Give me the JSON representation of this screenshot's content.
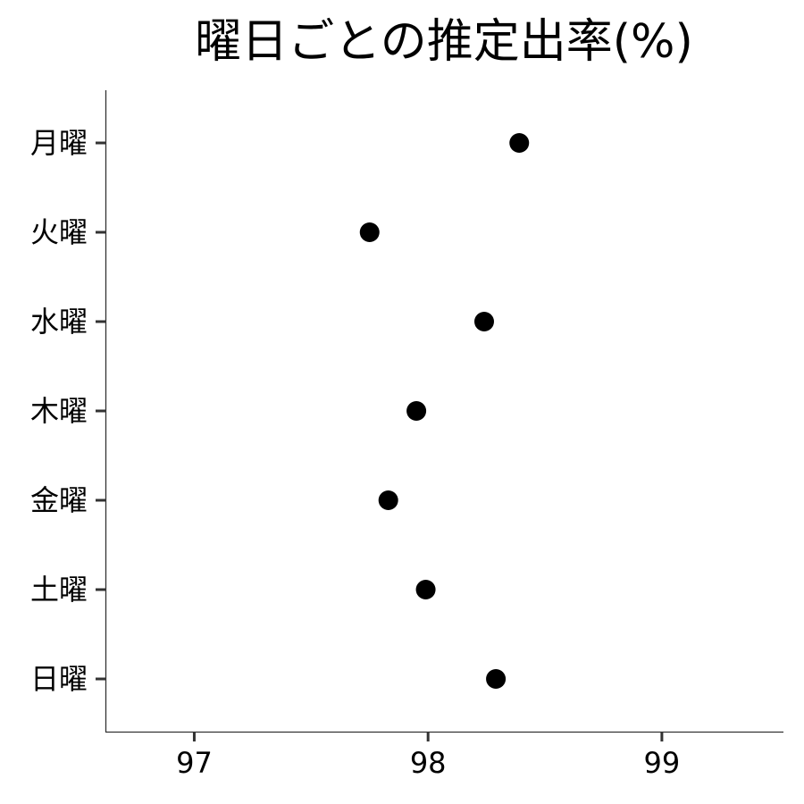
{
  "chart_data": {
    "type": "scatter",
    "title": "曜日ごとの推定出率(%)",
    "xlabel": "",
    "ylabel": "",
    "categories": [
      "月曜",
      "火曜",
      "水曜",
      "木曜",
      "金曜",
      "土曜",
      "日曜"
    ],
    "values": [
      98.39,
      97.75,
      98.24,
      97.95,
      97.83,
      97.99,
      98.29
    ],
    "xlim": [
      96.62,
      99.52
    ],
    "xticks": [
      "97",
      "98",
      "99"
    ],
    "grid": false,
    "point_color": "#000000"
  }
}
